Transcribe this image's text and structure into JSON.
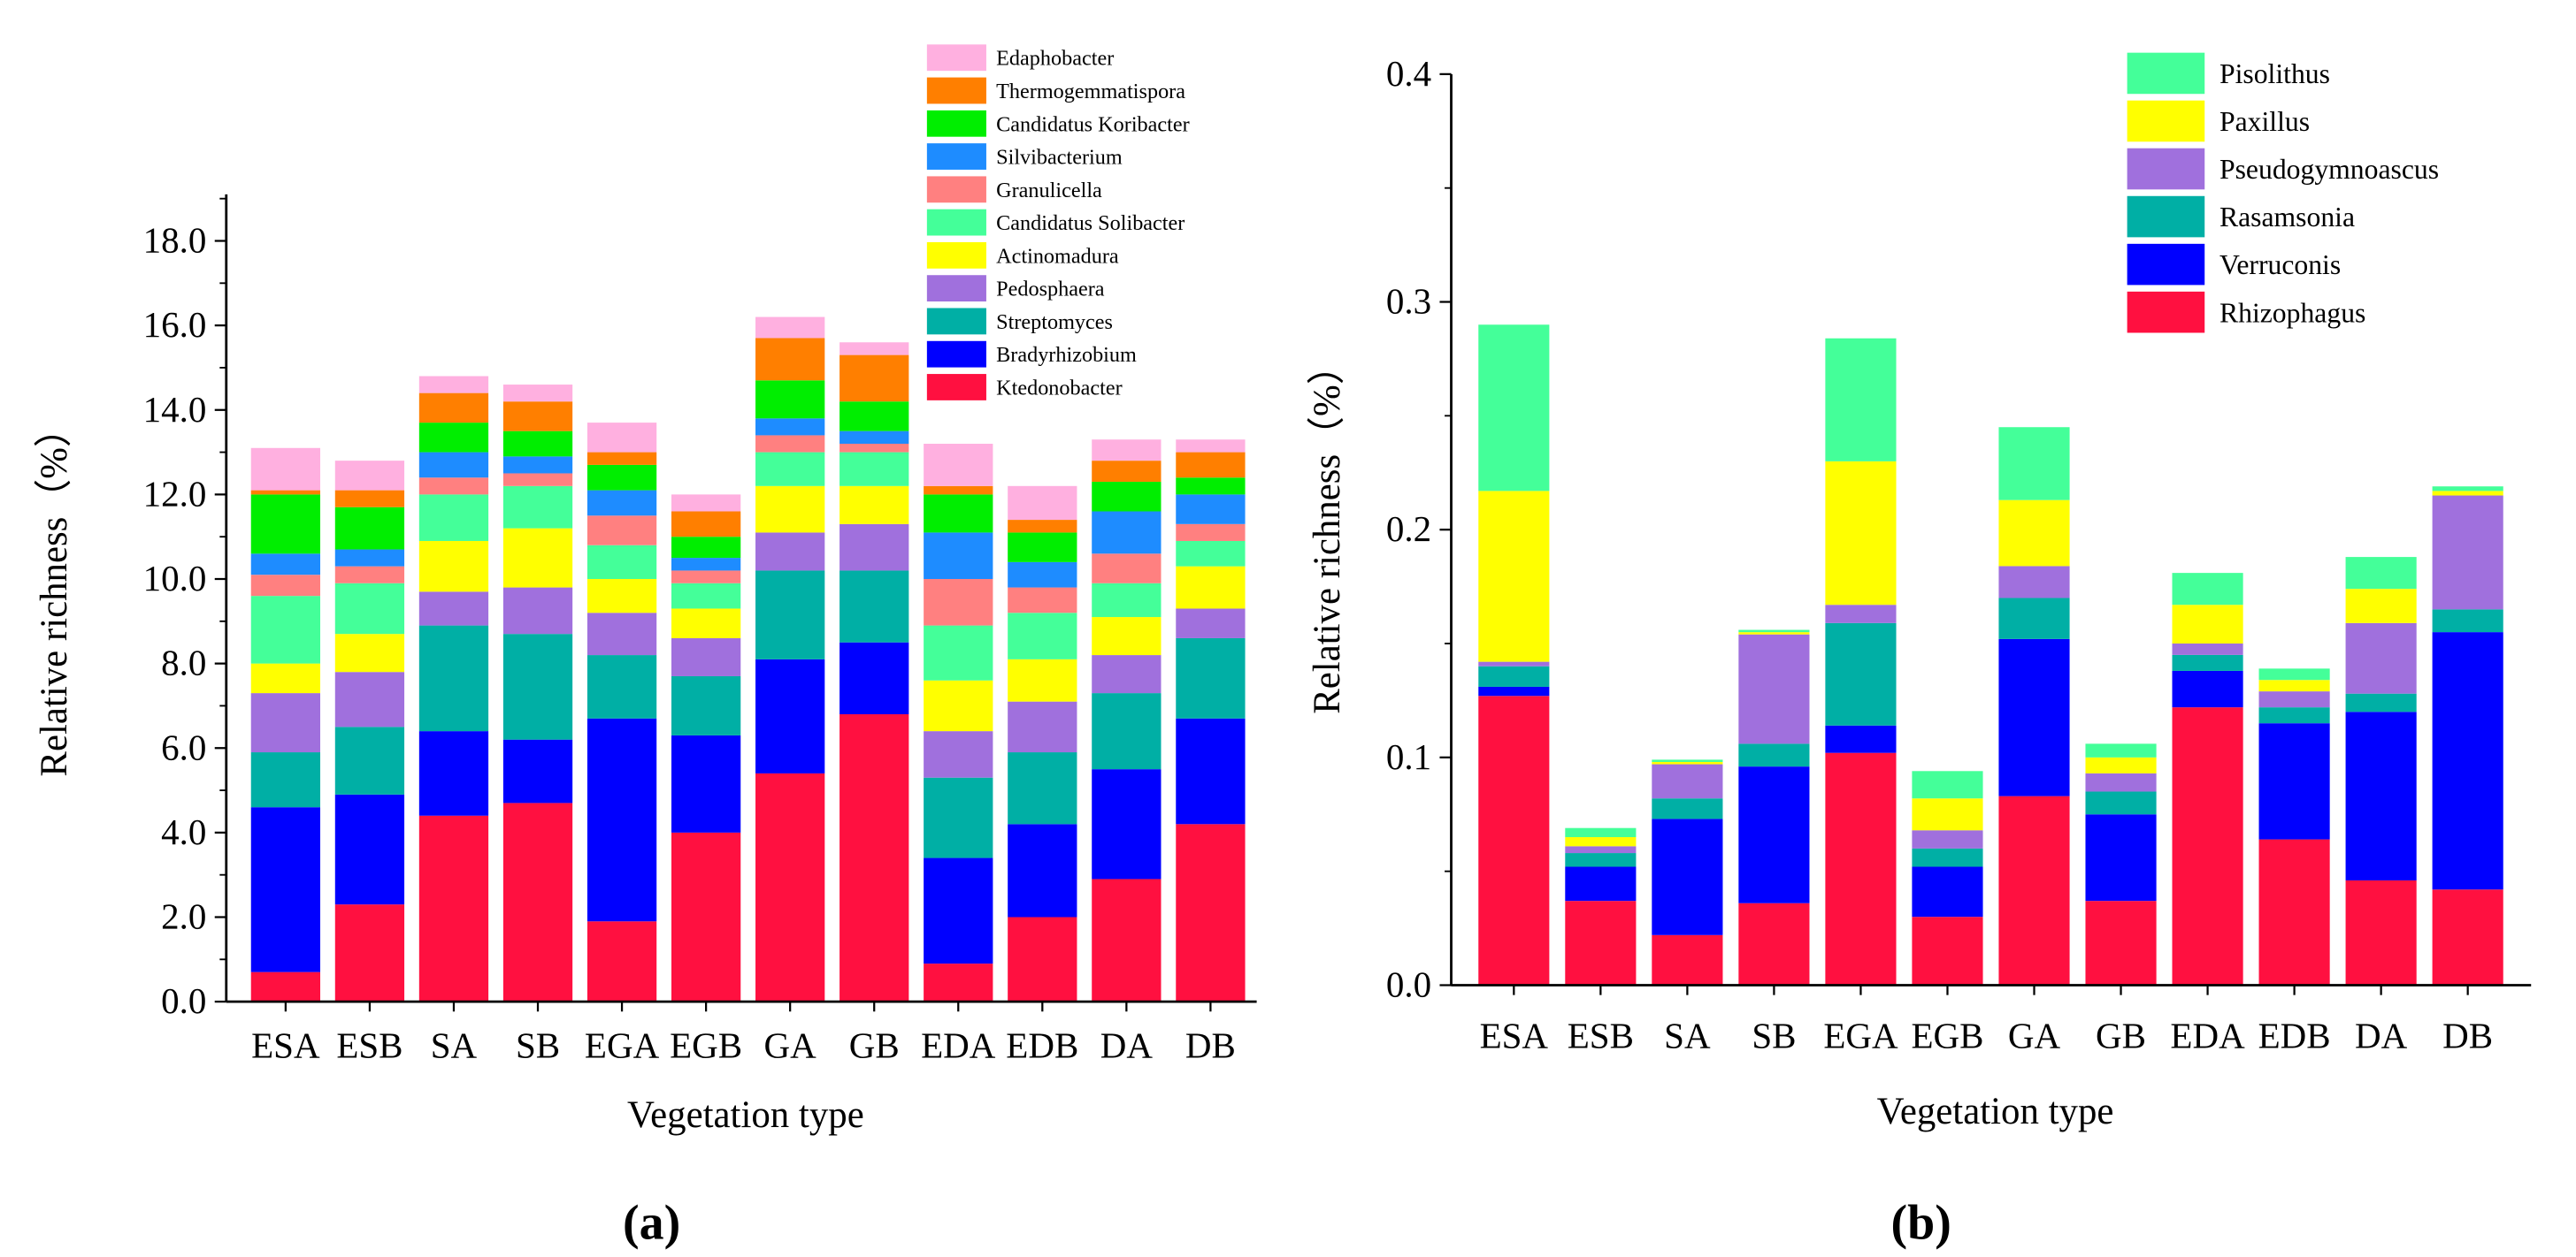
{
  "chart_data": [
    {
      "type": "bar",
      "stacked": true,
      "panel_label": "(a)",
      "xlabel": "Vegetation type",
      "ylabel": "Relative richness（%）",
      "ylim": [
        0,
        19.1
      ],
      "yticks": [
        "0.0",
        "2.0",
        "4.0",
        "6.0",
        "8.0",
        "10.0",
        "12.0",
        "14.0",
        "16.0",
        "18.0"
      ],
      "ytick_values": [
        0,
        2,
        4,
        6,
        8,
        10,
        12,
        14,
        16,
        18
      ],
      "legend_placement": "top-right",
      "categories": [
        "ESA",
        "ESB",
        "SA",
        "SB",
        "EGA",
        "EGB",
        "GA",
        "GB",
        "EDA",
        "EDB",
        "DA",
        "DB"
      ],
      "series": [
        {
          "name": "Ktedonobacter",
          "color": "#FF1040",
          "values": [
            0.7,
            2.3,
            4.4,
            4.7,
            1.9,
            4.0,
            5.4,
            6.8,
            0.9,
            2.0,
            2.9,
            4.2
          ]
        },
        {
          "name": "Bradyrhizobium",
          "color": "#0000FF",
          "values": [
            3.9,
            2.6,
            2.0,
            1.5,
            4.8,
            2.3,
            2.7,
            1.7,
            2.5,
            2.2,
            2.6,
            2.5
          ]
        },
        {
          "name": "Streptomyces",
          "color": "#00AFA5",
          "values": [
            1.3,
            1.6,
            2.5,
            2.5,
            1.5,
            1.4,
            2.1,
            1.7,
            1.9,
            1.7,
            1.8,
            1.9
          ]
        },
        {
          "name": "Pedosphaera",
          "color": "#A070DD",
          "values": [
            1.4,
            1.3,
            0.8,
            1.1,
            1.0,
            0.9,
            0.9,
            1.1,
            1.1,
            1.2,
            0.9,
            0.7
          ]
        },
        {
          "name": "Actinomadura",
          "color": "#FFFF00",
          "values": [
            0.7,
            0.9,
            1.2,
            1.4,
            0.8,
            0.7,
            1.1,
            0.9,
            1.2,
            1.0,
            0.9,
            1.0
          ]
        },
        {
          "name": "Candidatus Solibacter",
          "color": "#44FF99",
          "values": [
            1.6,
            1.2,
            1.1,
            1.0,
            0.8,
            0.6,
            0.8,
            0.8,
            1.3,
            1.1,
            0.8,
            0.6
          ]
        },
        {
          "name": "Granulicella",
          "color": "#FF8080",
          "values": [
            0.5,
            0.4,
            0.4,
            0.3,
            0.7,
            0.3,
            0.4,
            0.2,
            1.1,
            0.6,
            0.7,
            0.4
          ]
        },
        {
          "name": "Silvibacterium",
          "color": "#1E8CFF",
          "values": [
            0.5,
            0.4,
            0.6,
            0.4,
            0.6,
            0.3,
            0.4,
            0.3,
            1.1,
            0.6,
            1.0,
            0.7
          ]
        },
        {
          "name": "Candidatus Koribacter",
          "color": "#00EE00",
          "values": [
            1.4,
            1.0,
            0.7,
            0.6,
            0.6,
            0.5,
            0.9,
            0.7,
            0.9,
            0.7,
            0.7,
            0.4
          ]
        },
        {
          "name": "Thermogemmatispora",
          "color": "#FF7F00",
          "values": [
            0.1,
            0.4,
            0.7,
            0.7,
            0.3,
            0.6,
            1.0,
            1.1,
            0.2,
            0.3,
            0.5,
            0.6
          ]
        },
        {
          "name": "Edaphobacter",
          "color": "#FFB0E0",
          "values": [
            1.0,
            0.7,
            0.4,
            0.4,
            0.7,
            0.4,
            0.5,
            0.3,
            1.0,
            0.8,
            0.5,
            0.3
          ]
        }
      ]
    },
    {
      "type": "bar",
      "stacked": true,
      "panel_label": "(b)",
      "xlabel": "Vegetation type",
      "ylabel": "Relative richness（%）",
      "ylim": [
        0,
        0.4
      ],
      "yticks": [
        "0.0",
        "0.1",
        "0.2",
        "0.3",
        "0.4"
      ],
      "ytick_values": [
        0,
        0.1,
        0.2,
        0.3,
        0.4
      ],
      "legend_placement": "top-right",
      "categories": [
        "ESA",
        "ESB",
        "SA",
        "SB",
        "EGA",
        "EGB",
        "GA",
        "GB",
        "EDA",
        "EDB",
        "DA",
        "DB"
      ],
      "series": [
        {
          "name": "Rhizophagus",
          "color": "#FF1040",
          "values": [
            0.127,
            0.037,
            0.022,
            0.036,
            0.102,
            0.03,
            0.083,
            0.037,
            0.122,
            0.064,
            0.046,
            0.042
          ]
        },
        {
          "name": "Verruconis",
          "color": "#0000FF",
          "values": [
            0.004,
            0.015,
            0.051,
            0.06,
            0.012,
            0.022,
            0.069,
            0.038,
            0.016,
            0.051,
            0.074,
            0.113
          ]
        },
        {
          "name": "Rasamsonia",
          "color": "#00AFA5",
          "values": [
            0.009,
            0.006,
            0.009,
            0.01,
            0.045,
            0.008,
            0.018,
            0.01,
            0.007,
            0.007,
            0.008,
            0.01
          ]
        },
        {
          "name": "Pseudogymnoascus",
          "color": "#A070DD",
          "values": [
            0.002,
            0.003,
            0.015,
            0.048,
            0.008,
            0.008,
            0.014,
            0.008,
            0.005,
            0.007,
            0.031,
            0.05
          ]
        },
        {
          "name": "Paxillus",
          "color": "#FFFF00",
          "values": [
            0.075,
            0.004,
            0.001,
            0.001,
            0.063,
            0.014,
            0.029,
            0.007,
            0.017,
            0.005,
            0.015,
            0.002
          ]
        },
        {
          "name": "Pisolithus",
          "color": "#44FF99",
          "values": [
            0.073,
            0.004,
            0.001,
            0.001,
            0.054,
            0.012,
            0.032,
            0.006,
            0.014,
            0.005,
            0.014,
            0.002
          ]
        }
      ]
    }
  ]
}
